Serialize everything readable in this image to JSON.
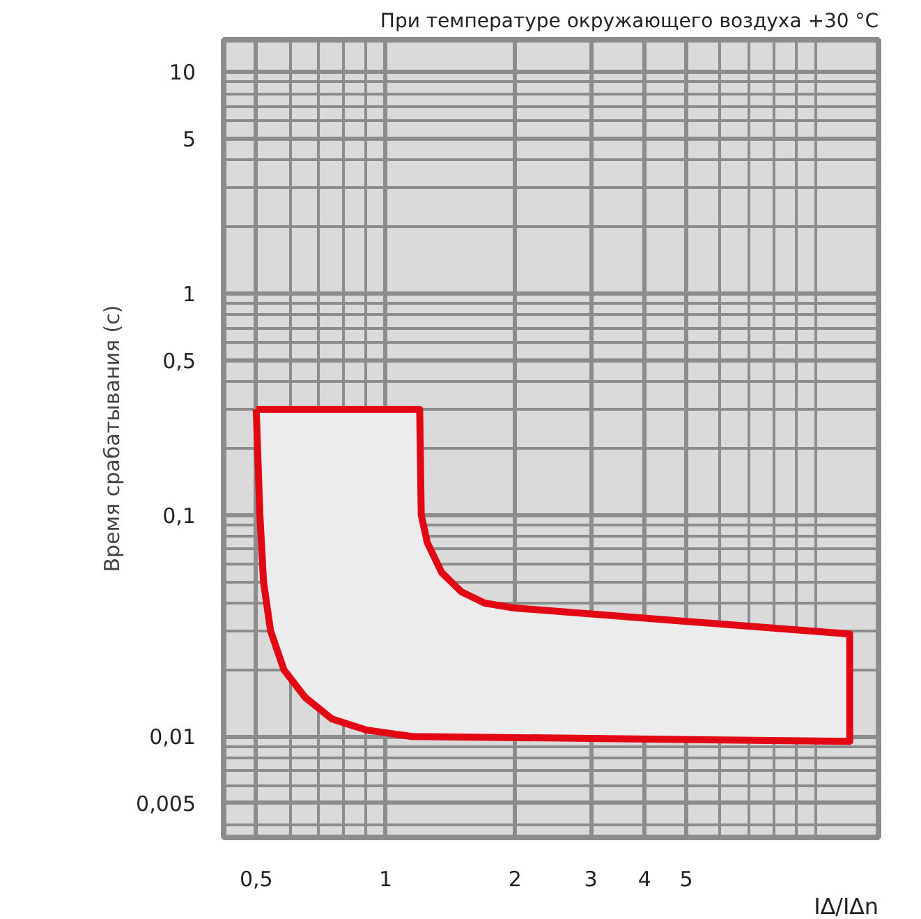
{
  "chart_data": {
    "type": "area",
    "title": "При температуре окружающего воздуха +30 °C",
    "xlabel": "I∆/I∆n",
    "ylabel": "Время срабатывания (с)",
    "log": "xy",
    "grid": true,
    "marker": "none",
    "line_style": "solid",
    "xlim": [
      0.42,
      14
    ],
    "ylim": [
      0.0035,
      14
    ],
    "xticks": [
      {
        "value": 0.5,
        "label": "0,5"
      },
      1,
      2,
      3,
      4,
      5
    ],
    "yticks": [
      {
        "value": 0.005,
        "label": "0,005"
      },
      {
        "value": 0.01,
        "label": "0,01"
      },
      {
        "value": 0.1,
        "label": "0,1"
      },
      {
        "value": 0.5,
        "label": "0,5"
      },
      1,
      5,
      10
    ],
    "series": [
      {
        "color": "#e30613",
        "x": [
          0.5,
          1.2,
          1.21,
          1.25,
          1.35,
          1.5,
          1.7,
          2,
          12,
          12,
          1.15,
          0.9,
          0.75,
          0.65,
          0.58,
          0.54,
          0.52,
          0.51,
          0.5
        ],
        "values": [
          0.3,
          0.3,
          0.1,
          0.075,
          0.055,
          0.045,
          0.04,
          0.038,
          0.029,
          0.0095,
          0.01,
          0.0107,
          0.012,
          0.015,
          0.02,
          0.03,
          0.05,
          0.1,
          0.3
        ]
      }
    ]
  }
}
